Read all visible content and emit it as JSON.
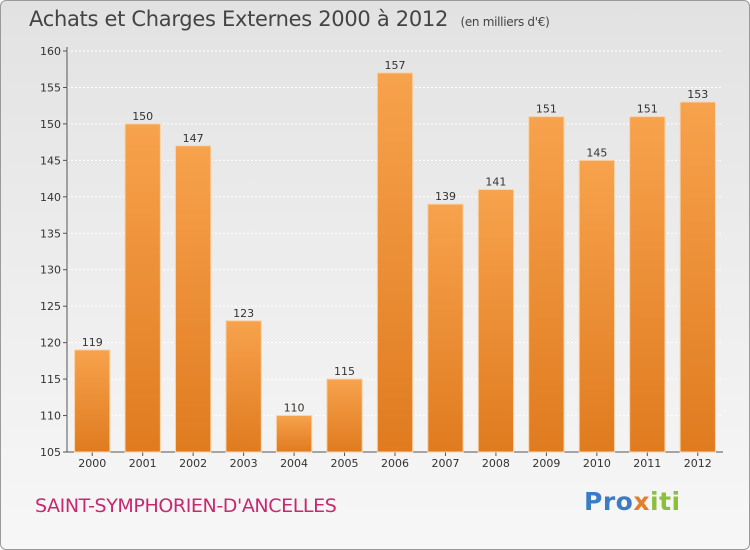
{
  "header": {
    "title": "Achats et Charges Externes 2000 à 2012",
    "subtitle": "(en milliers d'€)"
  },
  "footer": {
    "commune": "SAINT-SYMPHORIEN-D'ANCELLES",
    "logo": "Proxiti"
  },
  "colors": {
    "bar_light": "#f7a24d",
    "bar_dark": "#e07b1f",
    "commune": "#c8286e",
    "logo_letters": [
      "#3b7dc4",
      "#3b7dc4",
      "#3b7dc4",
      "#e0802a",
      "#8bbf3c",
      "#8bbf3c",
      "#8bbf3c"
    ]
  },
  "chart_data": {
    "type": "bar",
    "title": "Achats et Charges Externes 2000 à 2012",
    "subtitle": "(en milliers d'€)",
    "xlabel": "",
    "ylabel": "",
    "categories": [
      "2000",
      "2001",
      "2002",
      "2003",
      "2004",
      "2005",
      "2006",
      "2007",
      "2008",
      "2009",
      "2010",
      "2011",
      "2012"
    ],
    "values": [
      119,
      150,
      147,
      123,
      110,
      115,
      157,
      139,
      141,
      151,
      145,
      151,
      153
    ],
    "ylim": [
      105,
      160
    ],
    "yticks": [
      105,
      110,
      115,
      120,
      125,
      130,
      135,
      140,
      145,
      150,
      155,
      160
    ],
    "grid": true,
    "legend": "none"
  }
}
